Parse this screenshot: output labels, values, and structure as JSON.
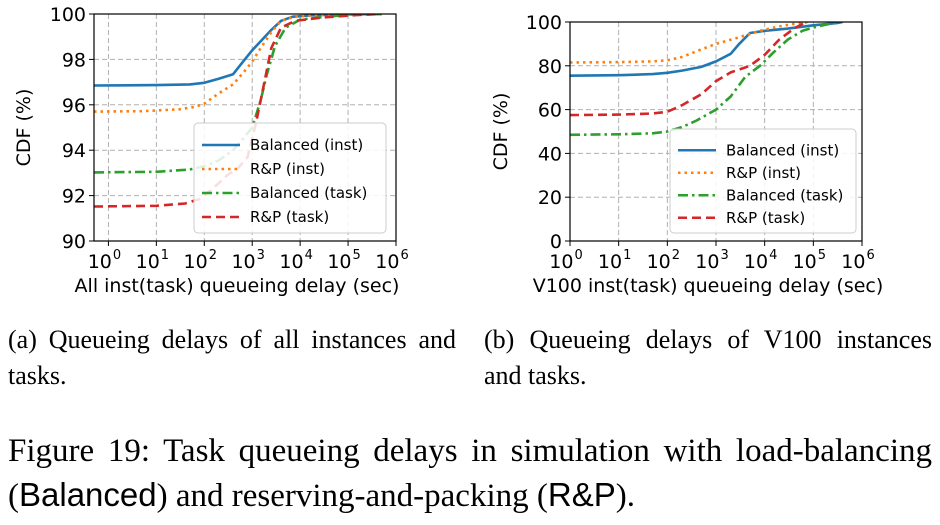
{
  "chart_data": [
    {
      "type": "line",
      "xlabel": "All inst(task) queueing delay (sec)",
      "ylabel": "CDF (%)",
      "x_scale": "log",
      "xlim": [
        0.5,
        1000000
      ],
      "ylim": [
        90,
        100
      ],
      "xticks": [
        1,
        10,
        100,
        1000,
        10000,
        100000,
        1000000
      ],
      "xtick_labels": [
        [
          "10",
          "0"
        ],
        [
          "10",
          "1"
        ],
        [
          "10",
          "2"
        ],
        [
          "10",
          "3"
        ],
        [
          "10",
          "4"
        ],
        [
          "10",
          "5"
        ],
        [
          "10",
          "6"
        ]
      ],
      "yticks": [
        90,
        92,
        94,
        96,
        98,
        100
      ],
      "ytick_labels": [
        "90",
        "92",
        "94",
        "96",
        "98",
        "100"
      ],
      "grid": true,
      "legend_position": "lower-right",
      "series": [
        {
          "name": "Balanced (inst)",
          "color": "#1f77b4",
          "style": "solid",
          "points": [
            [
              0.5,
              96.85
            ],
            [
              10,
              96.87
            ],
            [
              50,
              96.9
            ],
            [
              100,
              96.97
            ],
            [
              200,
              97.15
            ],
            [
              400,
              97.35
            ],
            [
              700,
              98.0
            ],
            [
              1000,
              98.4
            ],
            [
              1500,
              98.8
            ],
            [
              2500,
              99.3
            ],
            [
              4000,
              99.7
            ],
            [
              7000,
              99.88
            ],
            [
              20000,
              99.95
            ],
            [
              100000,
              99.98
            ],
            [
              500000,
              100.0
            ]
          ]
        },
        {
          "name": "R&P (inst)",
          "color": "#ff7f0e",
          "style": "dotted",
          "points": [
            [
              0.5,
              95.7
            ],
            [
              5,
              95.72
            ],
            [
              30,
              95.8
            ],
            [
              60,
              95.9
            ],
            [
              100,
              96.05
            ],
            [
              200,
              96.5
            ],
            [
              400,
              96.9
            ],
            [
              700,
              97.5
            ],
            [
              1000,
              97.9
            ],
            [
              1500,
              98.5
            ],
            [
              2500,
              99.2
            ],
            [
              4000,
              99.7
            ],
            [
              8000,
              99.9
            ],
            [
              30000,
              99.97
            ],
            [
              300000,
              100.0
            ]
          ]
        },
        {
          "name": "Balanced (task)",
          "color": "#2ca02c",
          "style": "dashdot",
          "points": [
            [
              0.5,
              93.02
            ],
            [
              10,
              93.05
            ],
            [
              50,
              93.15
            ],
            [
              100,
              93.3
            ],
            [
              200,
              93.55
            ],
            [
              400,
              94.0
            ],
            [
              700,
              94.6
            ],
            [
              1000,
              95.0
            ],
            [
              1500,
              96.2
            ],
            [
              2000,
              97.3
            ],
            [
              3000,
              98.6
            ],
            [
              5000,
              99.4
            ],
            [
              10000,
              99.75
            ],
            [
              40000,
              99.9
            ],
            [
              150000,
              99.97
            ],
            [
              500000,
              100.0
            ]
          ]
        },
        {
          "name": "R&P (task)",
          "color": "#d62728",
          "style": "dashed",
          "points": [
            [
              0.5,
              91.52
            ],
            [
              10,
              91.55
            ],
            [
              40,
              91.65
            ],
            [
              80,
              91.85
            ],
            [
              150,
              92.3
            ],
            [
              300,
              92.9
            ],
            [
              500,
              93.2
            ],
            [
              800,
              93.7
            ],
            [
              1200,
              95.2
            ],
            [
              1800,
              97.0
            ],
            [
              2500,
              98.5
            ],
            [
              4000,
              99.4
            ],
            [
              8000,
              99.7
            ],
            [
              30000,
              99.85
            ],
            [
              150000,
              99.95
            ],
            [
              500000,
              100.0
            ]
          ]
        }
      ]
    },
    {
      "type": "line",
      "xlabel": "V100 inst(task) queueing delay (sec)",
      "ylabel": "CDF (%)",
      "x_scale": "log",
      "xlim": [
        1,
        1000000
      ],
      "ylim": [
        0,
        100
      ],
      "xticks": [
        1,
        10,
        100,
        1000,
        10000,
        100000,
        1000000
      ],
      "xtick_labels": [
        [
          "10",
          "0"
        ],
        [
          "10",
          "1"
        ],
        [
          "10",
          "2"
        ],
        [
          "10",
          "3"
        ],
        [
          "10",
          "4"
        ],
        [
          "10",
          "5"
        ],
        [
          "10",
          "6"
        ]
      ],
      "yticks": [
        0,
        20,
        40,
        60,
        80,
        100
      ],
      "ytick_labels": [
        "0",
        "20",
        "40",
        "60",
        "80",
        "100"
      ],
      "grid": true,
      "legend_position": "lower-right",
      "series": [
        {
          "name": "Balanced (inst)",
          "color": "#1f77b4",
          "style": "solid",
          "points": [
            [
              1,
              75.5
            ],
            [
              10,
              75.7
            ],
            [
              50,
              76.2
            ],
            [
              100,
              76.8
            ],
            [
              200,
              77.8
            ],
            [
              500,
              79.5
            ],
            [
              1000,
              82.0
            ],
            [
              2000,
              85.5
            ],
            [
              3000,
              90.0
            ],
            [
              5000,
              95.0
            ],
            [
              10000,
              96.0
            ],
            [
              30000,
              97.0
            ],
            [
              100000,
              98.5
            ],
            [
              300000,
              99.5
            ],
            [
              400000,
              100.0
            ]
          ]
        },
        {
          "name": "R&P (inst)",
          "color": "#ff7f0e",
          "style": "dotted",
          "points": [
            [
              1,
              81.5
            ],
            [
              10,
              81.7
            ],
            [
              50,
              82.0
            ],
            [
              100,
              82.5
            ],
            [
              200,
              84.0
            ],
            [
              500,
              87.5
            ],
            [
              1000,
              90.0
            ],
            [
              3000,
              93.0
            ],
            [
              8000,
              96.0
            ],
            [
              20000,
              98.0
            ],
            [
              50000,
              99.5
            ],
            [
              80000,
              100.0
            ]
          ]
        },
        {
          "name": "Balanced (task)",
          "color": "#2ca02c",
          "style": "dashdot",
          "points": [
            [
              1,
              48.5
            ],
            [
              10,
              48.7
            ],
            [
              50,
              49.2
            ],
            [
              100,
              50.0
            ],
            [
              200,
              52.0
            ],
            [
              400,
              55.0
            ],
            [
              1000,
              60.0
            ],
            [
              2000,
              66.0
            ],
            [
              4000,
              75.0
            ],
            [
              8000,
              80.0
            ],
            [
              15000,
              86.0
            ],
            [
              30000,
              92.0
            ],
            [
              60000,
              96.0
            ],
            [
              100000,
              97.5
            ],
            [
              200000,
              99.0
            ],
            [
              300000,
              100.0
            ]
          ]
        },
        {
          "name": "R&P (task)",
          "color": "#d62728",
          "style": "dashed",
          "points": [
            [
              1,
              57.5
            ],
            [
              10,
              57.7
            ],
            [
              50,
              58.2
            ],
            [
              100,
              59.0
            ],
            [
              200,
              62.0
            ],
            [
              500,
              67.0
            ],
            [
              1000,
              73.0
            ],
            [
              2000,
              77.0
            ],
            [
              5000,
              80.0
            ],
            [
              10000,
              85.0
            ],
            [
              20000,
              92.0
            ],
            [
              40000,
              97.0
            ],
            [
              70000,
              100.0
            ]
          ]
        }
      ]
    }
  ],
  "captions": {
    "sub_a": "(a) Queueing delays of all instances and tasks.",
    "sub_b": "(b) Queueing delays of V100 instances and tasks.",
    "figure_prefix": "Figure 19: Task queueing delays in simulation with load-balancing (",
    "figure_balanced": "Balanced",
    "figure_middle": ") and reserving-and-packing (",
    "figure_rp": "R&P",
    "figure_suffix": ")."
  }
}
